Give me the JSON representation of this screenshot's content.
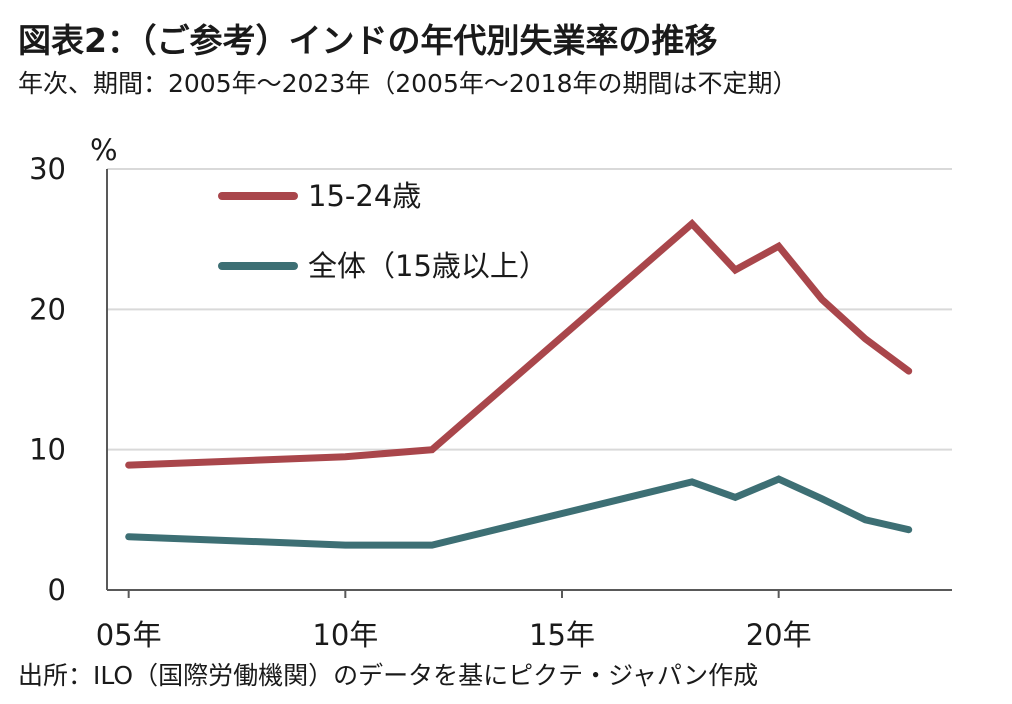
{
  "title": "図表2：（ご参考）インドの年代別失業率の推移",
  "subtitle": "年次、期間：2005年～2023年（2005年～2018年の期間は不定期）",
  "source": "出所：ILO（国際労働機関）のデータを基にピクテ・ジャパン作成",
  "colors": {
    "youth": "#a9464b",
    "total": "#3d6f74",
    "grid": "#d9d9d9",
    "axis": "#595959"
  },
  "chart_data": {
    "type": "line",
    "ylabel": "%",
    "xlabel": "",
    "ylim": [
      0,
      30
    ],
    "yticks": [
      "0",
      "10",
      "20",
      "30"
    ],
    "xticks": [
      {
        "value": 2005,
        "label": "05年"
      },
      {
        "value": 2010,
        "label": "10年"
      },
      {
        "value": 2015,
        "label": "15年"
      },
      {
        "value": 2020,
        "label": "20年"
      }
    ],
    "xlim": [
      2004.5,
      2024.0
    ],
    "grid": true,
    "legend_position": "top-left",
    "series": [
      {
        "name": "15-24歳",
        "color": "#a9464b",
        "points": [
          {
            "x": 2005,
            "y": 8.9
          },
          {
            "x": 2010,
            "y": 9.5
          },
          {
            "x": 2012,
            "y": 10.0
          },
          {
            "x": 2018,
            "y": 26.1
          },
          {
            "x": 2019,
            "y": 22.8
          },
          {
            "x": 2020,
            "y": 24.5
          },
          {
            "x": 2021,
            "y": 20.7
          },
          {
            "x": 2022,
            "y": 17.9
          },
          {
            "x": 2023,
            "y": 15.6
          }
        ]
      },
      {
        "name": "全体（15歳以上）",
        "color": "#3d6f74",
        "points": [
          {
            "x": 2005,
            "y": 3.8
          },
          {
            "x": 2010,
            "y": 3.2
          },
          {
            "x": 2012,
            "y": 3.2
          },
          {
            "x": 2018,
            "y": 7.7
          },
          {
            "x": 2019,
            "y": 6.6
          },
          {
            "x": 2020,
            "y": 7.9
          },
          {
            "x": 2021,
            "y": 6.5
          },
          {
            "x": 2022,
            "y": 5.0
          },
          {
            "x": 2023,
            "y": 4.3
          }
        ]
      }
    ]
  }
}
